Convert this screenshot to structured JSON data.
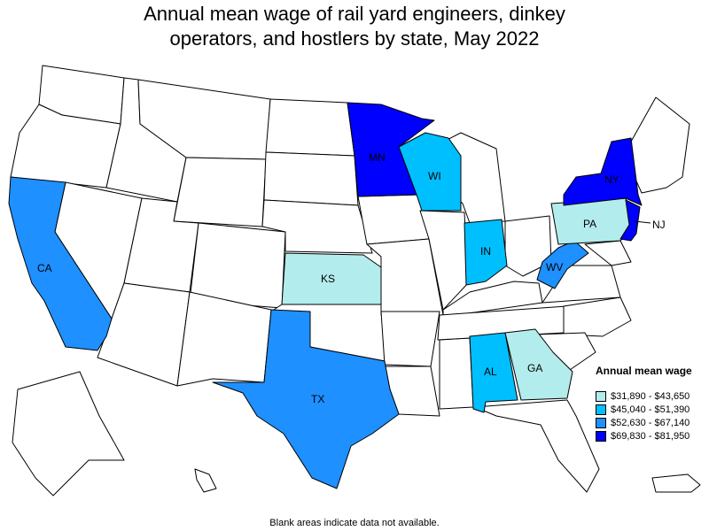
{
  "title_lines": [
    "Annual mean wage of rail yard engineers, dinkey",
    "operators, and hostlers by state, May 2022"
  ],
  "legend": {
    "title": "Annual mean wage",
    "items": [
      {
        "label": "$31,890 - $43,650",
        "color": "#b3ecec"
      },
      {
        "label": "$45,040 - $51,390",
        "color": "#00bfff"
      },
      {
        "label": "$52,630 - $67,140",
        "color": "#1e90ff"
      },
      {
        "label": "$69,830 - $81,950",
        "color": "#0000ff"
      }
    ]
  },
  "footnote": "Blank areas indicate data not available.",
  "states": [
    {
      "abbr": "CA",
      "range": 2,
      "color": "#1e90ff"
    },
    {
      "abbr": "TX",
      "range": 2,
      "color": "#1e90ff"
    },
    {
      "abbr": "KS",
      "range": 0,
      "color": "#b3ecec"
    },
    {
      "abbr": "MN",
      "range": 3,
      "color": "#0000ff"
    },
    {
      "abbr": "WI",
      "range": 1,
      "color": "#00bfff"
    },
    {
      "abbr": "IN",
      "range": 1,
      "color": "#00bfff"
    },
    {
      "abbr": "WV",
      "range": 2,
      "color": "#1e90ff"
    },
    {
      "abbr": "PA",
      "range": 0,
      "color": "#b3ecec"
    },
    {
      "abbr": "NY",
      "range": 3,
      "color": "#0000ff"
    },
    {
      "abbr": "NJ",
      "range": 3,
      "color": "#0000ff"
    },
    {
      "abbr": "AL",
      "range": 1,
      "color": "#00bfff"
    },
    {
      "abbr": "GA",
      "range": 0,
      "color": "#b3ecec"
    }
  ]
}
